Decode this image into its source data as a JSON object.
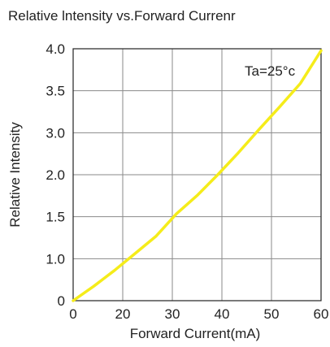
{
  "chart_data": {
    "type": "line",
    "title": "Relative lntensity vs.Forward Currenr",
    "xlabel": "Forward Current(mA)",
    "ylabel": "Relative Intensity",
    "annotation": "Ta=25°c",
    "x_ticks": [
      "0",
      "20",
      "30",
      "40",
      "50",
      "60"
    ],
    "y_ticks": [
      "0",
      "1.0",
      "1.5",
      "2.0",
      "3.0",
      "3.5",
      "4.0"
    ],
    "grid": true,
    "series": [
      {
        "color": "#f5ec1a",
        "points": [
          {
            "x": 0,
            "y": 0
          },
          {
            "x": 5,
            "y": 0.23
          },
          {
            "x": 10,
            "y": 0.48
          },
          {
            "x": 15,
            "y": 0.75
          },
          {
            "x": 20,
            "y": 1.02
          },
          {
            "x": 25,
            "y": 1.38
          },
          {
            "x": 30,
            "y": 1.67
          },
          {
            "x": 35,
            "y": 2.0
          },
          {
            "x": 40,
            "y": 2.35
          },
          {
            "x": 45,
            "y": 2.72
          },
          {
            "x": 50,
            "y": 3.08
          },
          {
            "x": 55,
            "y": 3.45
          },
          {
            "x": 60,
            "y": 3.97
          }
        ]
      }
    ]
  }
}
